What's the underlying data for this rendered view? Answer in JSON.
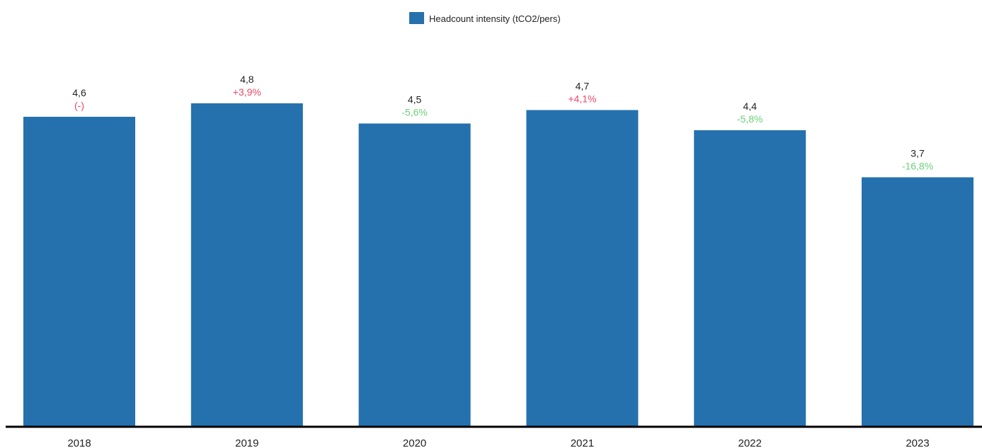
{
  "chart_data": {
    "type": "bar",
    "categories": [
      "2018",
      "2019",
      "2020",
      "2021",
      "2022",
      "2023"
    ],
    "series": [
      {
        "name": "Headcount intensity (tCO2/pers)",
        "values": [
          4.6,
          4.8,
          4.5,
          4.7,
          4.4,
          3.7
        ],
        "color": "#2571ad"
      }
    ],
    "data_labels": [
      "4,6",
      "4,8",
      "4,5",
      "4,7",
      "4,4",
      "3,7"
    ],
    "change_labels": [
      "(-)",
      "+3,9%",
      "-5,6%",
      "+4,1%",
      "-5,8%",
      "-16,8%"
    ],
    "change_direction": [
      "neutral",
      "up",
      "down",
      "up",
      "down",
      "down"
    ],
    "colors": {
      "bar": "#2571ad",
      "increase": "#e8496a",
      "decrease": "#6cd178",
      "neutral": "#e8496a",
      "axis": "#000000"
    },
    "ylim": [
      0,
      4.8
    ],
    "grid": false,
    "legend_position": "top-center",
    "title": "",
    "xlabel": "",
    "ylabel": ""
  }
}
